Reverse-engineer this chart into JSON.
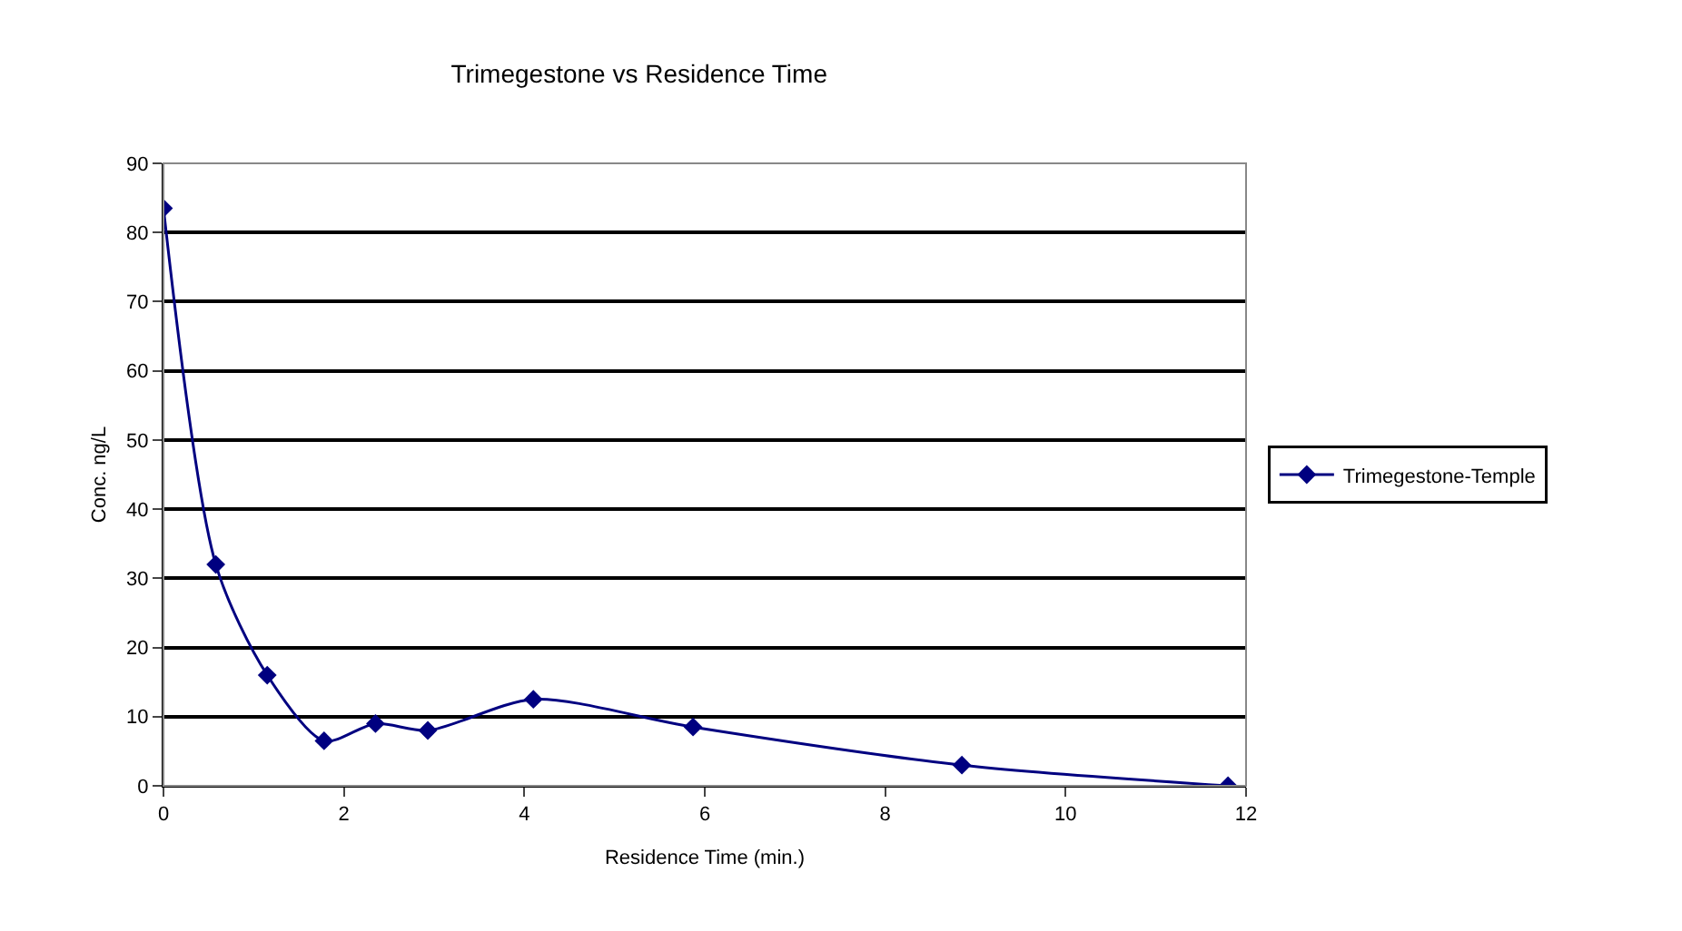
{
  "chart_data": {
    "type": "line",
    "title": "Trimegestone vs Residence Time",
    "xlabel": "Residence Time (min.)",
    "ylabel": "Conc. ng/L",
    "x": [
      0,
      0.58,
      1.15,
      1.78,
      2.35,
      2.93,
      4.1,
      5.87,
      8.85,
      11.8
    ],
    "series": [
      {
        "name": "Trimegestone-Temple",
        "color": "#000080",
        "values": [
          83.5,
          32,
          16,
          6.5,
          9,
          8,
          12.5,
          8.5,
          3,
          0
        ]
      }
    ],
    "xlim": [
      0,
      12
    ],
    "xticks": [
      0,
      2,
      4,
      6,
      8,
      10,
      12
    ],
    "ylim": [
      0,
      90
    ],
    "yticks": [
      0,
      10,
      20,
      30,
      40,
      50,
      60,
      70,
      80,
      90
    ],
    "grid": "y",
    "legend": "right",
    "marker": "diamond",
    "line_style": "solid"
  }
}
